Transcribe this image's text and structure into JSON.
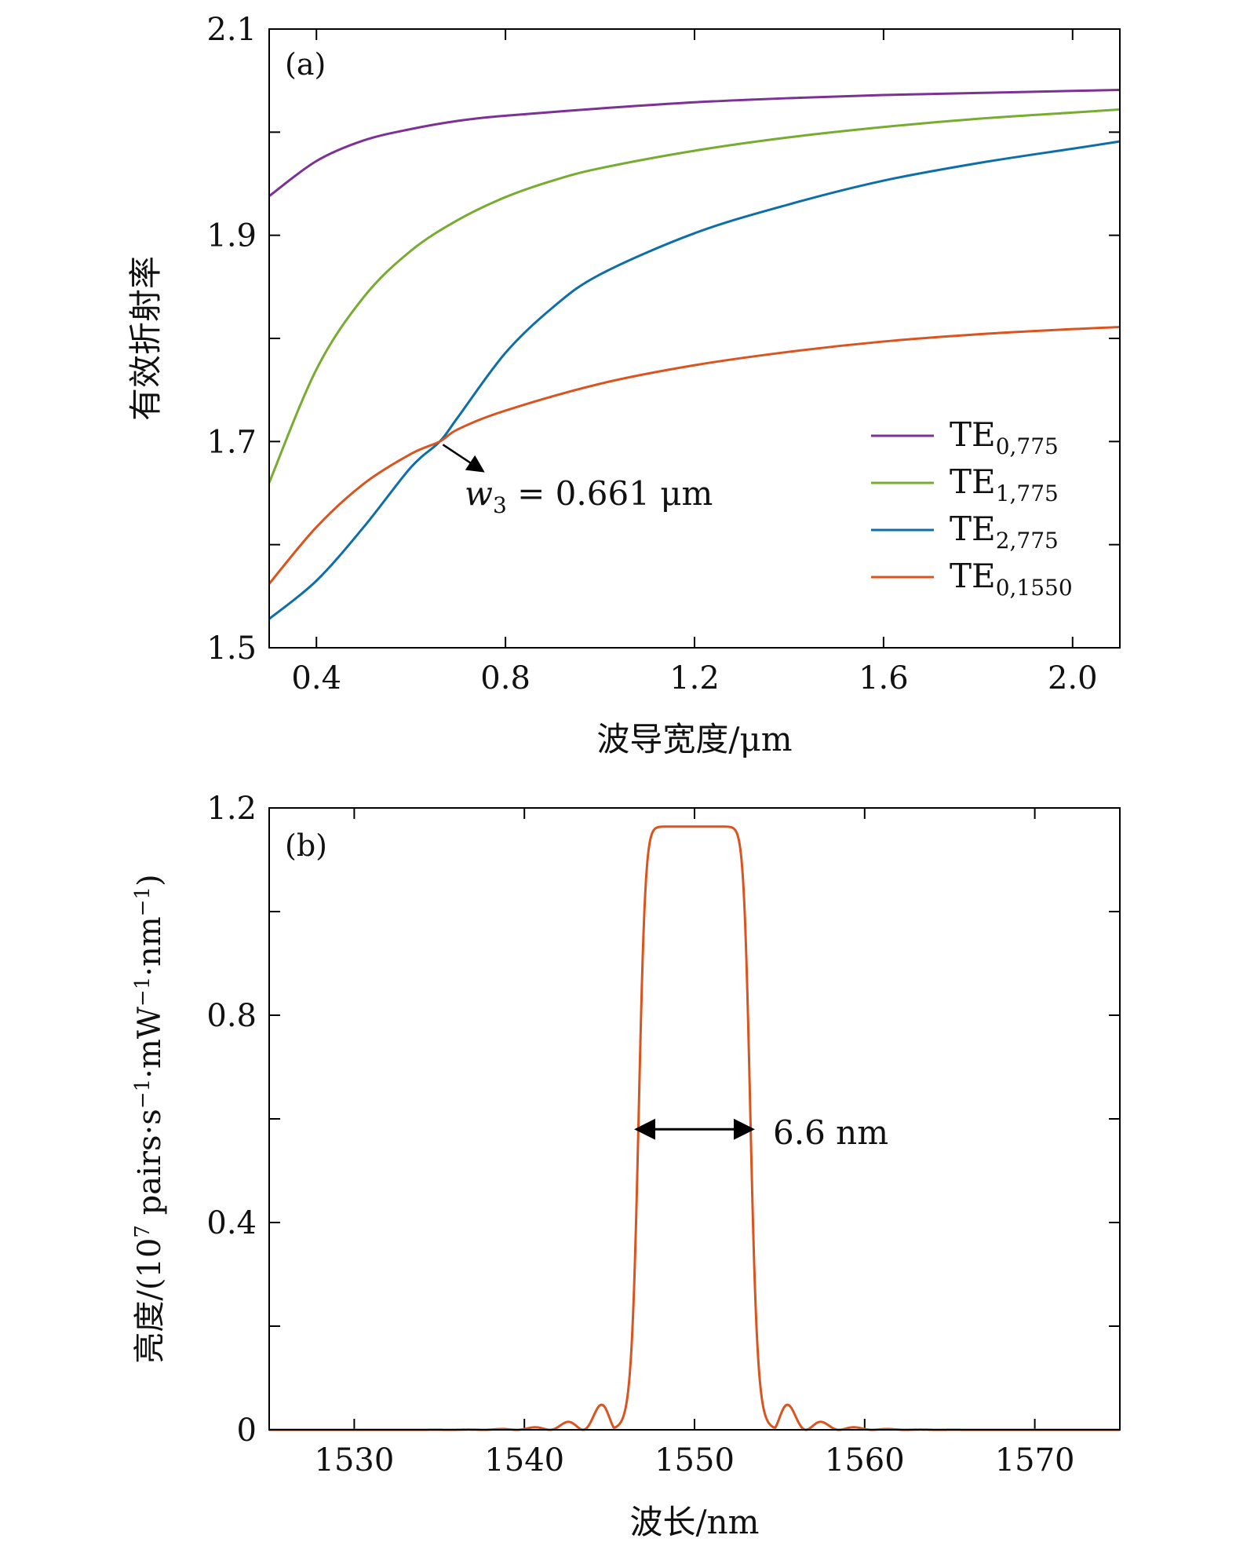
{
  "chart_data": [
    {
      "type": "line",
      "panel_label": "(a)",
      "xlabel": "波导宽度/μm",
      "ylabel": "有效折射率",
      "xlim": [
        0.3,
        2.1
      ],
      "ylim": [
        1.5,
        2.1
      ],
      "xticks": [
        0.4,
        0.8,
        1.2,
        1.6,
        2.0
      ],
      "xtick_labels": [
        "0.4",
        "0.8",
        "1.2",
        "1.6",
        "2.0"
      ],
      "yticks": [
        1.5,
        1.6,
        1.7,
        1.8,
        1.9,
        2.0,
        2.1
      ],
      "ytick_labels": [
        "1.5",
        "",
        "1.7",
        "",
        "1.9",
        "",
        "2.1"
      ],
      "legend_position": "lower-right",
      "series": [
        {
          "name": "TE0,775",
          "legend_main": "TE",
          "legend_sub": "0,775",
          "color": "#7B3294",
          "x": [
            0.3,
            0.4,
            0.5,
            0.6,
            0.7,
            0.8,
            1.0,
            1.2,
            1.4,
            1.6,
            1.8,
            2.0,
            2.1
          ],
          "y": [
            1.938,
            1.972,
            1.992,
            2.003,
            2.011,
            2.016,
            2.023,
            2.029,
            2.033,
            2.036,
            2.038,
            2.04,
            2.041
          ]
        },
        {
          "name": "TE1,775",
          "legend_main": "TE",
          "legend_sub": "1,775",
          "color": "#77AC30",
          "x": [
            0.3,
            0.4,
            0.5,
            0.6,
            0.7,
            0.8,
            0.9,
            1.0,
            1.2,
            1.4,
            1.6,
            1.8,
            2.0,
            2.1
          ],
          "y": [
            1.66,
            1.77,
            1.84,
            1.885,
            1.915,
            1.937,
            1.953,
            1.965,
            1.982,
            1.995,
            2.005,
            2.013,
            2.019,
            2.022
          ]
        },
        {
          "name": "TE2,775",
          "legend_main": "TE",
          "legend_sub": "2,775",
          "color": "#0E6FA8",
          "x": [
            0.3,
            0.4,
            0.5,
            0.6,
            0.661,
            0.7,
            0.8,
            0.9,
            1.0,
            1.2,
            1.4,
            1.6,
            1.8,
            2.0,
            2.1
          ],
          "y": [
            1.528,
            1.565,
            1.617,
            1.675,
            1.7,
            1.724,
            1.786,
            1.83,
            1.862,
            1.902,
            1.93,
            1.953,
            1.97,
            1.984,
            1.991
          ]
        },
        {
          "name": "TE0,1550",
          "legend_main": "TE",
          "legend_sub": "0,1550",
          "color": "#D9541E",
          "x": [
            0.3,
            0.4,
            0.5,
            0.6,
            0.661,
            0.7,
            0.8,
            1.0,
            1.2,
            1.4,
            1.6,
            1.8,
            2.0,
            2.1
          ],
          "y": [
            1.562,
            1.617,
            1.659,
            1.688,
            1.7,
            1.712,
            1.73,
            1.756,
            1.774,
            1.787,
            1.797,
            1.804,
            1.809,
            1.811
          ]
        }
      ],
      "annotation": {
        "text_var": "w",
        "text_sub": "3",
        "text_rest": " = 0.661 μm",
        "point": [
          0.661,
          1.7
        ],
        "arrow_to": [
          0.75,
          1.672
        ]
      }
    },
    {
      "type": "line",
      "panel_label": "(b)",
      "xlabel": "波长/nm",
      "ylabel_pre": "亮度/(10",
      "ylabel_sup1": "7",
      "ylabel_mid1": " pairs·s",
      "ylabel_sup2": "−1",
      "ylabel_mid2": "·mW",
      "ylabel_sup3": "−1",
      "ylabel_mid3": "·nm",
      "ylabel_sup4": "−1",
      "ylabel_post": ")",
      "xlim": [
        1525,
        1575
      ],
      "ylim": [
        0,
        1.2
      ],
      "xticks": [
        1530,
        1540,
        1550,
        1560,
        1570
      ],
      "xtick_labels": [
        "1530",
        "1540",
        "1550",
        "1560",
        "1570"
      ],
      "yticks": [
        0,
        0.2,
        0.4,
        0.6,
        0.8,
        1.0,
        1.2
      ],
      "ytick_labels": [
        "0",
        "",
        "0.4",
        "",
        "0.8",
        "",
        "1.2"
      ],
      "series": [
        {
          "name": "",
          "color": "#D9541E",
          "peak": 1.164,
          "center": 1550,
          "fwhm": 6.6
        }
      ],
      "annotation": {
        "text": "6.6 nm",
        "arrow_from": [
          1546.7,
          0.58
        ],
        "arrow_to": [
          1553.3,
          0.58
        ]
      }
    }
  ]
}
